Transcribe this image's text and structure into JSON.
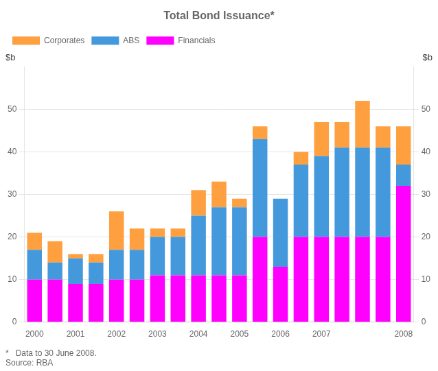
{
  "chart_data": {
    "type": "bar",
    "title": "Total Bond Issuance*",
    "categories": [
      "2000",
      null,
      "2001",
      null,
      "2002",
      null,
      "2003",
      null,
      "2004",
      null,
      "2005",
      null,
      "2006",
      null,
      "2007",
      null,
      null,
      null,
      "2008"
    ],
    "series": [
      {
        "name": "Financials",
        "color": "#FF00FF",
        "values": [
          10,
          10,
          9,
          9,
          10,
          10,
          11,
          11,
          11,
          11,
          11,
          20,
          13,
          20,
          20,
          20,
          20,
          20,
          32
        ]
      },
      {
        "name": "ABS",
        "color": "#4499DD",
        "values": [
          7,
          4,
          6,
          5,
          7,
          7,
          9,
          9,
          14,
          16,
          16,
          23,
          16,
          17,
          19,
          21,
          21,
          21,
          5
        ]
      },
      {
        "name": "Corporates",
        "color": "#FFA040",
        "values": [
          4,
          5,
          1,
          2,
          9,
          5,
          2,
          2,
          6,
          6,
          2,
          3,
          0,
          3,
          8,
          6,
          11,
          5,
          9
        ]
      }
    ],
    "stacked": true,
    "ylim": [
      0,
      60
    ],
    "yticks": [
      0,
      10,
      20,
      30,
      40,
      50
    ],
    "y2lim": [
      0,
      60
    ],
    "y2ticks": [
      0,
      10,
      20,
      30,
      40,
      50
    ],
    "ylabel": "$b",
    "y2label": "$b",
    "grid": true,
    "legend": "upper left",
    "annotations": [
      "*   Data to 30 June 2008.",
      "Source: RBA"
    ]
  }
}
